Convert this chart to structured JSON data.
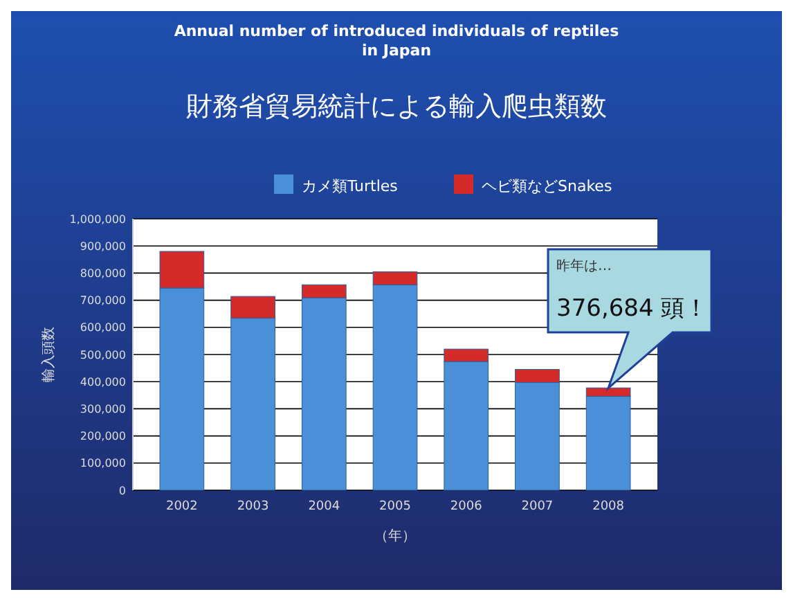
{
  "chart_data": {
    "type": "bar",
    "title": "Annual number of introduced individuals of reptiles in Japan",
    "subtitle": "財務省貿易統計による輸入爬虫類数",
    "xlabel": "（年）",
    "ylabel": "輸入頭数",
    "categories": [
      "2002",
      "2003",
      "2004",
      "2005",
      "2006",
      "2007",
      "2008"
    ],
    "stacked": true,
    "series": [
      {
        "name": "カメ類Turtles",
        "color": "#4a90d9",
        "values": [
          745000,
          634000,
          709000,
          757000,
          474000,
          397000,
          346000
        ]
      },
      {
        "name": "ヘビ類などSnakes",
        "color": "#d42a2a",
        "values": [
          135000,
          80000,
          48000,
          48000,
          46000,
          48000,
          31000
        ]
      }
    ],
    "ylim": [
      0,
      1000000
    ],
    "yticks": [
      {
        "value": 0,
        "label": "0"
      },
      {
        "value": 100000,
        "label": "100,000"
      },
      {
        "value": 200000,
        "label": "200,000"
      },
      {
        "value": 300000,
        "label": "300,000"
      },
      {
        "value": 400000,
        "label": "400,000"
      },
      {
        "value": 500000,
        "label": "500,000"
      },
      {
        "value": 600000,
        "label": "600,000"
      },
      {
        "value": 700000,
        "label": "700,000"
      },
      {
        "value": 800000,
        "label": "800,000"
      },
      {
        "value": 900000,
        "label": "900,000"
      },
      {
        "value": 1000000,
        "label": "1,000,000"
      }
    ],
    "grid": "y",
    "legend": "top",
    "annotations": [
      "昨年は…",
      {
        "text": "376,684 頭！",
        "x": "2008",
        "y": 376684
      }
    ]
  }
}
